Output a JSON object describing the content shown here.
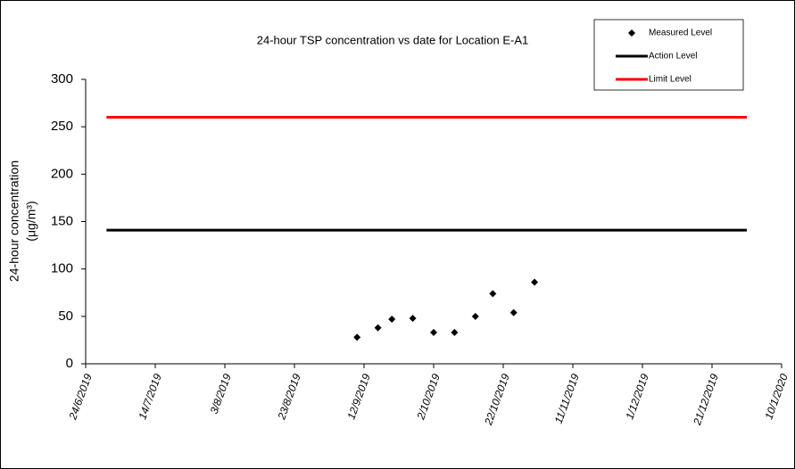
{
  "chart_data": {
    "type": "scatter",
    "title": "24-hour TSP concentration vs date for Location E-A1",
    "y_label": [
      "24-hour concentration",
      "(μg/m³)"
    ],
    "xlim": [
      "2019-06-24",
      "2020-01-10"
    ],
    "xticks": [
      {
        "value": "2019-06-24",
        "label": "24/6/2019"
      },
      {
        "value": "2019-07-14",
        "label": "14/7/2019"
      },
      {
        "value": "2019-08-03",
        "label": "3/8/2019"
      },
      {
        "value": "2019-08-23",
        "label": "23/8/2019"
      },
      {
        "value": "2019-09-12",
        "label": "12/9/2019"
      },
      {
        "value": "2019-10-02",
        "label": "2/10/2019"
      },
      {
        "value": "2019-10-22",
        "label": "22/10/2019"
      },
      {
        "value": "2019-11-11",
        "label": "11/11/2019"
      },
      {
        "value": "2019-12-01",
        "label": "1/12/2019"
      },
      {
        "value": "2019-12-21",
        "label": "21/12/2019"
      },
      {
        "value": "2020-01-10",
        "label": "10/1/2020"
      }
    ],
    "ylim": [
      0,
      300
    ],
    "yticks": [
      0,
      50,
      100,
      150,
      200,
      250,
      300
    ],
    "grid": false,
    "legend": "top-right",
    "series": [
      {
        "name": "Measured Level",
        "color": "#000000",
        "mode": "markers",
        "x": [
          "2019-09-10",
          "2019-09-16",
          "2019-09-20",
          "2019-09-26",
          "2019-10-02",
          "2019-10-08",
          "2019-10-14",
          "2019-10-19",
          "2019-10-25",
          "2019-10-31"
        ],
        "values": [
          28,
          38,
          47,
          48,
          33,
          33,
          50,
          74,
          54,
          86
        ]
      },
      {
        "name": "Action Level",
        "color": "#000000",
        "mode": "line",
        "x": [
          "2019-06-30",
          "2019-12-31"
        ],
        "values": [
          141,
          141
        ]
      },
      {
        "name": "Limit Level",
        "color": "#ff0000",
        "mode": "line",
        "x": [
          "2019-06-30",
          "2019-12-31"
        ],
        "values": [
          260,
          260
        ]
      }
    ]
  }
}
